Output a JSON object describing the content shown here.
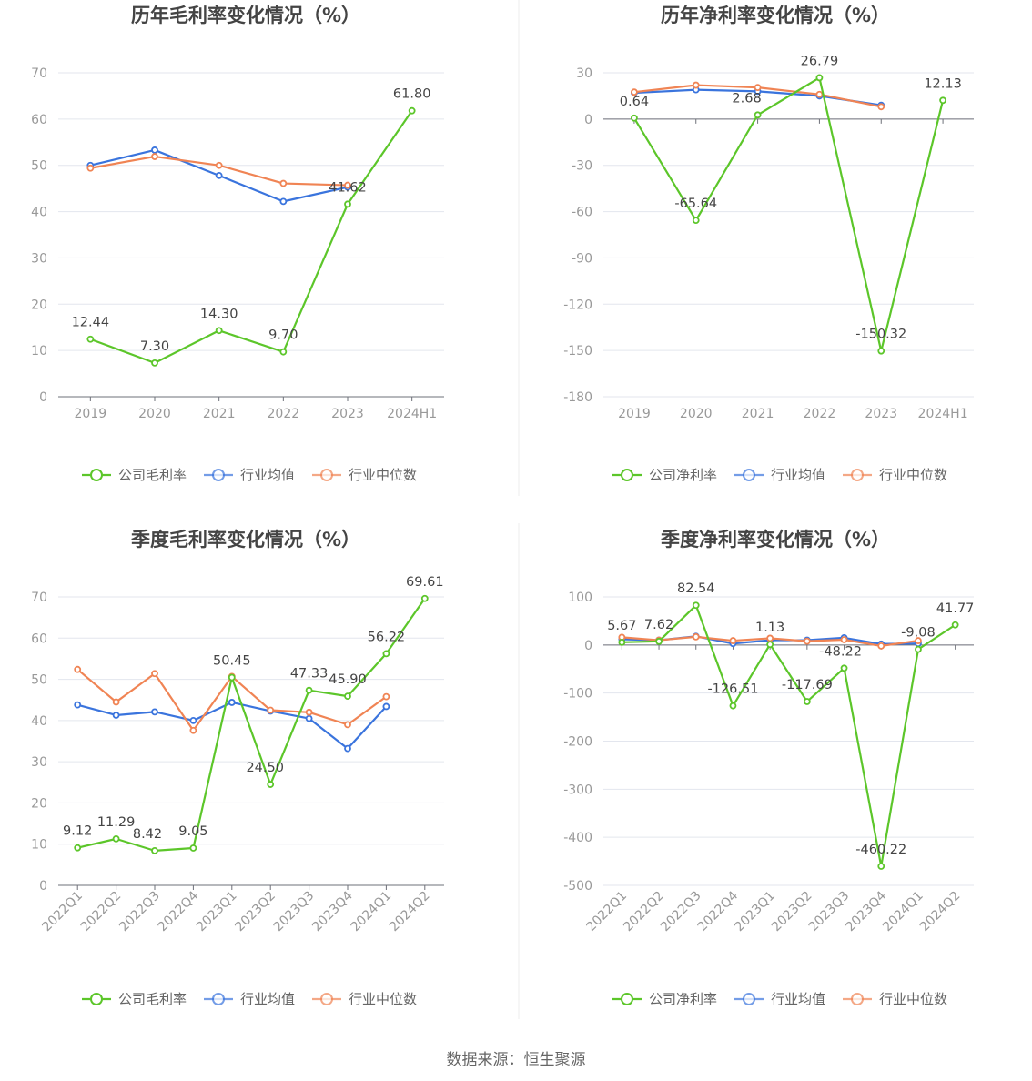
{
  "source": "数据来源：恒生聚源",
  "colors": {
    "company": "#5cc62a",
    "avg": "#3a74dd",
    "median": "#f08454",
    "grid": "#e3e6ee",
    "axis": "#6e7079"
  },
  "legend": {
    "gross": [
      "公司毛利率",
      "行业均值",
      "行业中位数"
    ],
    "net": [
      "公司净利率",
      "行业均值",
      "行业中位数"
    ]
  },
  "chart_data": [
    {
      "type": "line",
      "title": "历年毛利率变化情况（%）",
      "categories": [
        "2019",
        "2020",
        "2021",
        "2022",
        "2023",
        "2024H1"
      ],
      "ylim": [
        0,
        70
      ],
      "yticks": [
        0,
        10,
        20,
        30,
        40,
        50,
        60,
        70
      ],
      "series": [
        {
          "name": "公司毛利率",
          "values": [
            12.44,
            7.3,
            14.3,
            9.7,
            41.62,
            61.8
          ],
          "labels": [
            "12.44",
            "7.30",
            "14.30",
            "9.70",
            "41.62",
            "61.80"
          ]
        },
        {
          "name": "行业均值",
          "values": [
            50.0,
            53.3,
            47.8,
            42.2,
            45.3,
            null
          ]
        },
        {
          "name": "行业中位数",
          "values": [
            49.4,
            51.9,
            50.0,
            46.1,
            45.7,
            null
          ]
        }
      ]
    },
    {
      "type": "line",
      "title": "历年净利率变化情况（%）",
      "categories": [
        "2019",
        "2020",
        "2021",
        "2022",
        "2023",
        "2024H1"
      ],
      "ylim": [
        -180,
        30
      ],
      "yticks": [
        -180,
        -150,
        -120,
        -90,
        -60,
        -30,
        0,
        30
      ],
      "series": [
        {
          "name": "公司净利率",
          "values": [
            0.64,
            -65.64,
            2.68,
            26.79,
            -150.32,
            12.13
          ],
          "labels": [
            "0.64",
            "-65.64",
            "2.68",
            "26.79",
            "-150.32",
            "12.13"
          ]
        },
        {
          "name": "行业均值",
          "values": [
            17.0,
            19.0,
            18.0,
            15.0,
            9.0,
            null
          ]
        },
        {
          "name": "行业中位数",
          "values": [
            17.5,
            22.0,
            20.5,
            16.0,
            8.0,
            null
          ]
        }
      ]
    },
    {
      "type": "line",
      "title": "季度毛利率变化情况（%）",
      "categories": [
        "2022Q1",
        "2022Q2",
        "2022Q3",
        "2022Q4",
        "2023Q1",
        "2023Q2",
        "2023Q3",
        "2023Q4",
        "2024Q1",
        "2024Q2"
      ],
      "ylim": [
        0,
        70
      ],
      "yticks": [
        0,
        10,
        20,
        30,
        40,
        50,
        60,
        70
      ],
      "series": [
        {
          "name": "公司毛利率",
          "values": [
            9.12,
            11.29,
            8.42,
            9.05,
            50.45,
            24.5,
            47.33,
            45.9,
            56.22,
            69.61
          ],
          "labels": [
            "9.12",
            "11.29",
            "8.42",
            "9.05",
            "50.45",
            "24.50",
            "47.33",
            "45.90",
            "56.22",
            "69.61"
          ]
        },
        {
          "name": "行业均值",
          "values": [
            43.8,
            41.3,
            42.1,
            40.0,
            44.4,
            42.3,
            40.5,
            33.2,
            43.4,
            null
          ]
        },
        {
          "name": "行业中位数",
          "values": [
            52.4,
            44.5,
            51.4,
            37.6,
            50.7,
            42.5,
            42.0,
            39.0,
            45.8,
            null
          ]
        }
      ]
    },
    {
      "type": "line",
      "title": "季度净利率变化情况（%）",
      "categories": [
        "2022Q1",
        "2022Q2",
        "2022Q3",
        "2022Q4",
        "2023Q1",
        "2023Q2",
        "2023Q3",
        "2023Q4",
        "2024Q1",
        "2024Q2"
      ],
      "ylim": [
        -500,
        100
      ],
      "yticks": [
        -500,
        -400,
        -300,
        -200,
        -100,
        0,
        100
      ],
      "series": [
        {
          "name": "公司净利率",
          "values": [
            5.67,
            7.62,
            82.54,
            -126.51,
            1.13,
            -117.69,
            -48.22,
            -460.22,
            -9.08,
            41.77
          ],
          "labels": [
            "5.67",
            "7.62",
            "82.54",
            "-126.51",
            "1.13",
            "-117.69",
            "-48.22",
            "-460.22",
            "-9.08",
            "41.77"
          ]
        },
        {
          "name": "行业均值",
          "values": [
            12,
            10,
            18,
            3,
            10,
            10,
            15,
            2,
            3,
            null
          ]
        },
        {
          "name": "行业中位数",
          "values": [
            16,
            10,
            17,
            9,
            14,
            8,
            11,
            -2,
            9,
            null
          ]
        }
      ]
    }
  ]
}
